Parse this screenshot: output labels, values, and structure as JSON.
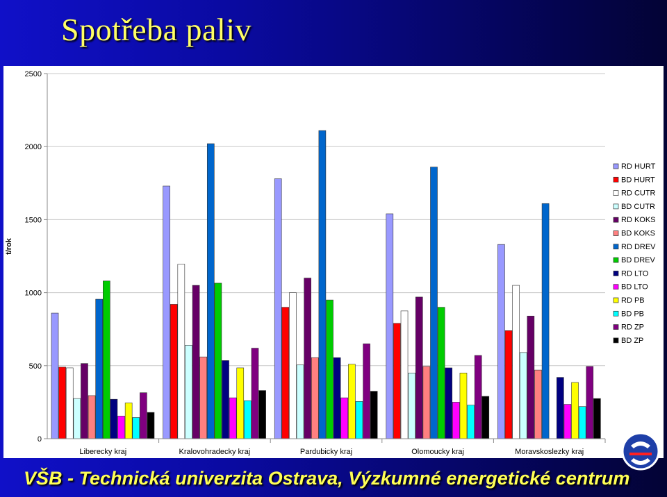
{
  "slide": {
    "title": "Spotřeba paliv",
    "footer": "VŠB - Technická univerzita Ostrava, Výzkumné energetické centrum"
  },
  "colors": {
    "slide_background": "#0a0aa8",
    "title": "#ffff66",
    "footer": "#ffff55"
  },
  "chart_data": {
    "type": "bar",
    "title": "",
    "xlabel": "",
    "ylabel": "t/rok",
    "ylim": [
      0,
      2500
    ],
    "yticks": [
      0,
      500,
      1000,
      1500,
      2000,
      2500
    ],
    "grid": true,
    "legend_position": "right",
    "categories": [
      "Liberecky kraj",
      "Kralovohradecky kraj",
      "Pardubicky kraj",
      "Olomoucky kraj",
      "Moravskoslezky kraj"
    ],
    "series": [
      {
        "name": "RD HURT",
        "color": "#9999ff",
        "values": [
          860,
          1730,
          1780,
          1540,
          1330
        ]
      },
      {
        "name": "BD HURT",
        "color": "#ff0000",
        "values": [
          490,
          920,
          900,
          790,
          740
        ]
      },
      {
        "name": "RD CUTR",
        "color": "#ffffff",
        "values": [
          485,
          1195,
          1000,
          875,
          1050
        ]
      },
      {
        "name": "BD CUTR",
        "color": "#ccffff",
        "values": [
          275,
          640,
          505,
          450,
          590
        ]
      },
      {
        "name": "RD KOKS",
        "color": "#660066",
        "values": [
          515,
          1050,
          1100,
          970,
          840
        ]
      },
      {
        "name": "BD KOKS",
        "color": "#ff8080",
        "values": [
          295,
          560,
          555,
          495,
          470
        ]
      },
      {
        "name": "RD DREV",
        "color": "#0066cc",
        "values": [
          955,
          2020,
          2110,
          1860,
          1610
        ]
      },
      {
        "name": "BD DREV",
        "color": "#00cc00",
        "values": [
          1080,
          1065,
          950,
          900,
          0
        ]
      },
      {
        "name": "RD LTO",
        "color": "#000080",
        "values": [
          270,
          535,
          555,
          485,
          420
        ]
      },
      {
        "name": "BD LTO",
        "color": "#ff00ff",
        "values": [
          155,
          280,
          280,
          250,
          235
        ]
      },
      {
        "name": "RD PB",
        "color": "#ffff00",
        "values": [
          245,
          485,
          510,
          450,
          385
        ]
      },
      {
        "name": "BD PB",
        "color": "#00ffff",
        "values": [
          145,
          260,
          255,
          230,
          220
        ]
      },
      {
        "name": "RD ZP",
        "color": "#800080",
        "values": [
          315,
          620,
          650,
          570,
          495
        ]
      },
      {
        "name": "BD ZP",
        "color": "#000000",
        "values": [
          180,
          330,
          325,
          290,
          275
        ]
      }
    ]
  }
}
